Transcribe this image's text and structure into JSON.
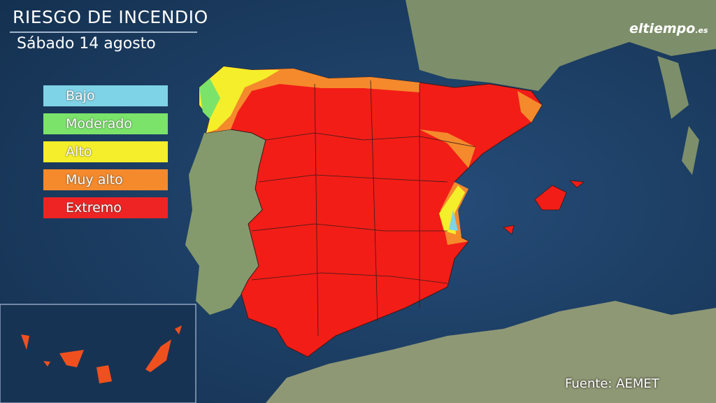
{
  "header": {
    "title": "RIESGO DE INCENDIO",
    "subtitle": "Sábado 14 agosto"
  },
  "logo": {
    "name": "eltiempo",
    "suffix": ".es"
  },
  "legend": {
    "items": [
      {
        "label": "Bajo",
        "color": "#7fd3e6"
      },
      {
        "label": "Moderado",
        "color": "#7be36a"
      },
      {
        "label": "Alto",
        "color": "#f5ee2a"
      },
      {
        "label": "Muy alto",
        "color": "#f48a2c"
      },
      {
        "label": "Extremo",
        "color": "#ee2424"
      }
    ]
  },
  "source": "Fuente: AEMET"
}
